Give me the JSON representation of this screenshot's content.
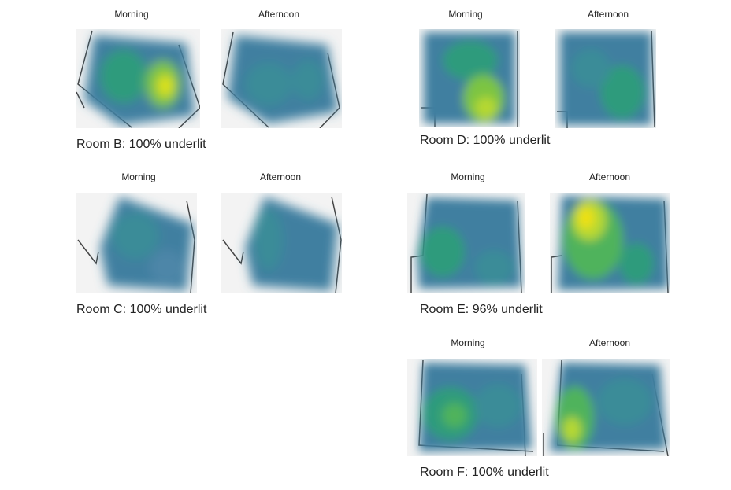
{
  "rooms": [
    {
      "id": "B",
      "caption": "Room B: 100% underlit",
      "morning": "Morning",
      "afternoon": "Afternoon"
    },
    {
      "id": "C",
      "caption": "Room C: 100% underlit",
      "morning": "Morning",
      "afternoon": "Afternoon"
    },
    {
      "id": "D",
      "caption": "Room D: 100% underlit",
      "morning": "Morning",
      "afternoon": "Afternoon"
    },
    {
      "id": "E",
      "caption": "Room E: 96% underlit",
      "morning": "Morning",
      "afternoon": "Afternoon"
    },
    {
      "id": "F",
      "caption": "Room F: 100% underlit",
      "morning": "Morning",
      "afternoon": "Afternoon"
    }
  ],
  "colors": {
    "base": "#3f7fa0",
    "mid": "#2e9b7c",
    "green": "#4fb35c",
    "bright": "#b6d832",
    "peak": "#e3e40f",
    "floorplan_bg": "#f2f2f2",
    "wall": "#444444"
  }
}
